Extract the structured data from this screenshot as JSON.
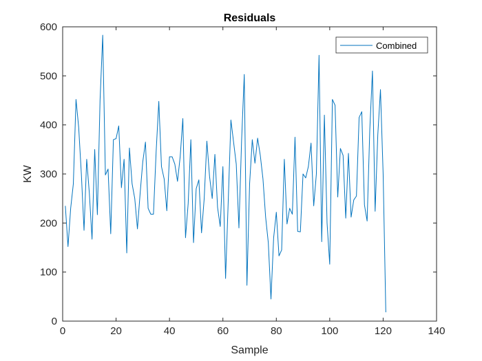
{
  "chart_data": {
    "type": "line",
    "title": "Residuals",
    "xlabel": "Sample",
    "ylabel": "KW",
    "xlim": [
      0,
      140
    ],
    "ylim": [
      0,
      600
    ],
    "xticks": [
      0,
      20,
      40,
      60,
      80,
      100,
      120,
      140
    ],
    "yticks": [
      0,
      100,
      200,
      300,
      400,
      500,
      600
    ],
    "grid": false,
    "legend_position": "top-right",
    "series": [
      {
        "name": "Combined",
        "color": "#0072bd",
        "x": [
          1,
          2,
          3,
          4,
          5,
          6,
          7,
          8,
          9,
          10,
          11,
          12,
          13,
          14,
          15,
          16,
          17,
          18,
          19,
          20,
          21,
          22,
          23,
          24,
          25,
          26,
          27,
          28,
          29,
          30,
          31,
          32,
          33,
          34,
          35,
          36,
          37,
          38,
          39,
          40,
          41,
          42,
          43,
          44,
          45,
          46,
          47,
          48,
          49,
          50,
          51,
          52,
          53,
          54,
          55,
          56,
          57,
          58,
          59,
          60,
          61,
          62,
          63,
          64,
          65,
          66,
          67,
          68,
          69,
          70,
          71,
          72,
          73,
          74,
          75,
          76,
          77,
          78,
          79,
          80,
          81,
          82,
          83,
          84,
          85,
          86,
          87,
          88,
          89,
          90,
          91,
          92,
          93,
          94,
          95,
          96,
          97,
          98,
          99,
          100,
          101,
          102,
          103,
          104,
          105,
          106,
          107,
          108,
          109,
          110,
          111,
          112,
          113,
          114,
          115,
          116,
          117,
          118,
          119,
          120,
          121
        ],
        "y": [
          235,
          152,
          230,
          280,
          452,
          395,
          300,
          185,
          330,
          260,
          167,
          350,
          217,
          450,
          583,
          298,
          310,
          178,
          370,
          372,
          398,
          272,
          330,
          139,
          353,
          280,
          250,
          188,
          260,
          325,
          365,
          230,
          218,
          218,
          345,
          448,
          315,
          290,
          225,
          335,
          335,
          320,
          285,
          335,
          413,
          170,
          240,
          370,
          160,
          270,
          288,
          180,
          250,
          367,
          295,
          250,
          340,
          232,
          193,
          315,
          87,
          245,
          410,
          365,
          320,
          190,
          368,
          503,
          73,
          280,
          370,
          322,
          373,
          338,
          290,
          212,
          160,
          45,
          170,
          222,
          133,
          145,
          330,
          198,
          230,
          218,
          375,
          183,
          182,
          300,
          292,
          315,
          363,
          235,
          300,
          542,
          162,
          420,
          200,
          116,
          452,
          440,
          253,
          352,
          338,
          210,
          342,
          212,
          247,
          255,
          415,
          427,
          237,
          204,
          390,
          510,
          224,
          380,
          472,
          300,
          18
        ]
      }
    ]
  }
}
